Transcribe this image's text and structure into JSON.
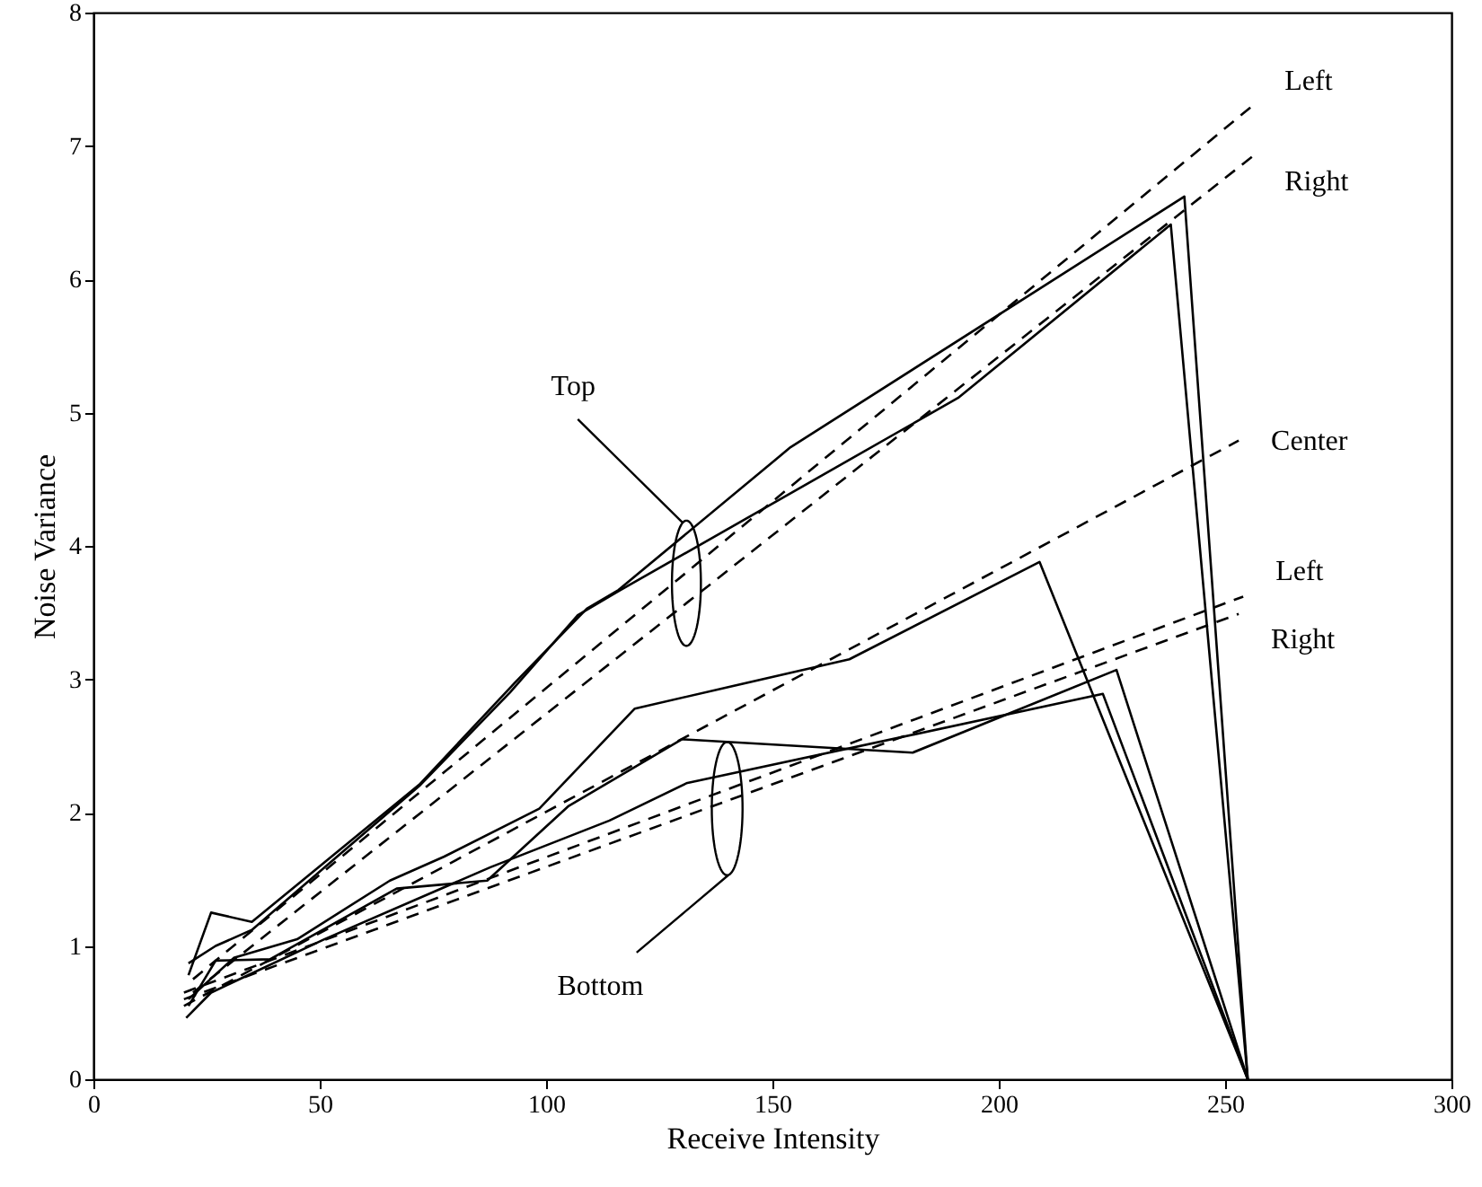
{
  "chart_data": {
    "type": "line",
    "xlabel": "Receive Intensity",
    "ylabel": "Noise Variance",
    "xlim": [
      0,
      300
    ],
    "ylim": [
      0,
      8
    ],
    "xticks": [
      0,
      50,
      100,
      150,
      200,
      250,
      300
    ],
    "yticks": [
      0,
      1,
      2,
      3,
      4,
      5,
      6,
      7,
      8
    ],
    "grid": false,
    "marker": "none",
    "series": [
      {
        "color": "#000000",
        "line_style": "solid",
        "x": [
          21,
          26,
          35,
          72,
          93,
          109,
          116,
          154,
          241,
          255
        ],
        "values": [
          0.78,
          1.25,
          1.18,
          2.21,
          2.97,
          3.53,
          3.67,
          4.74,
          6.62,
          0
        ]
      },
      {
        "color": "#000000",
        "line_style": "solid",
        "x": [
          21,
          27,
          35,
          72,
          92,
          107,
          116,
          191,
          238,
          255
        ],
        "values": [
          0.87,
          1.0,
          1.12,
          2.2,
          2.9,
          3.48,
          3.66,
          5.11,
          6.41,
          0
        ]
      },
      {
        "color": "#000000",
        "line_style": "solid",
        "x": [
          21,
          31,
          45,
          65.5,
          77.5,
          98.5,
          119.6,
          167,
          209,
          255
        ],
        "values": [
          0.6,
          0.91,
          1.05,
          1.49,
          1.67,
          2.03,
          2.78,
          3.15,
          3.88,
          0
        ]
      },
      {
        "color": "#000000",
        "line_style": "solid",
        "x": [
          21,
          27,
          39,
          67,
          87,
          105,
          130,
          181,
          226,
          255
        ],
        "values": [
          0.55,
          0.89,
          0.9,
          1.43,
          1.49,
          2.05,
          2.55,
          2.45,
          3.07,
          0
        ]
      },
      {
        "color": "#000000",
        "line_style": "solid",
        "x": [
          20.5,
          26,
          51,
          87.7,
          114,
          131,
          223,
          255
        ],
        "values": [
          0.46,
          0.65,
          1.05,
          1.59,
          1.94,
          2.22,
          2.89,
          0
        ]
      },
      {
        "name": "Left",
        "color": "#000000",
        "line_style": "dashed",
        "x": [
          22,
          256
        ],
        "values": [
          0.75,
          7.3
        ]
      },
      {
        "name": "Right",
        "color": "#000000",
        "line_style": "dashed",
        "x": [
          22,
          256
        ],
        "values": [
          0.65,
          6.92
        ]
      },
      {
        "name": "Center",
        "color": "#000000",
        "line_style": "dashed",
        "x": [
          20,
          253
        ],
        "values": [
          0.55,
          4.79
        ]
      },
      {
        "name": "Left",
        "color": "#000000",
        "line_style": "dashed",
        "x": [
          20,
          254
        ],
        "values": [
          0.65,
          3.62
        ]
      },
      {
        "name": "Right",
        "color": "#000000",
        "line_style": "dashed",
        "x": [
          20,
          253
        ],
        "values": [
          0.6,
          3.49
        ]
      }
    ],
    "annotations": [
      "Top",
      "Bottom"
    ]
  }
}
